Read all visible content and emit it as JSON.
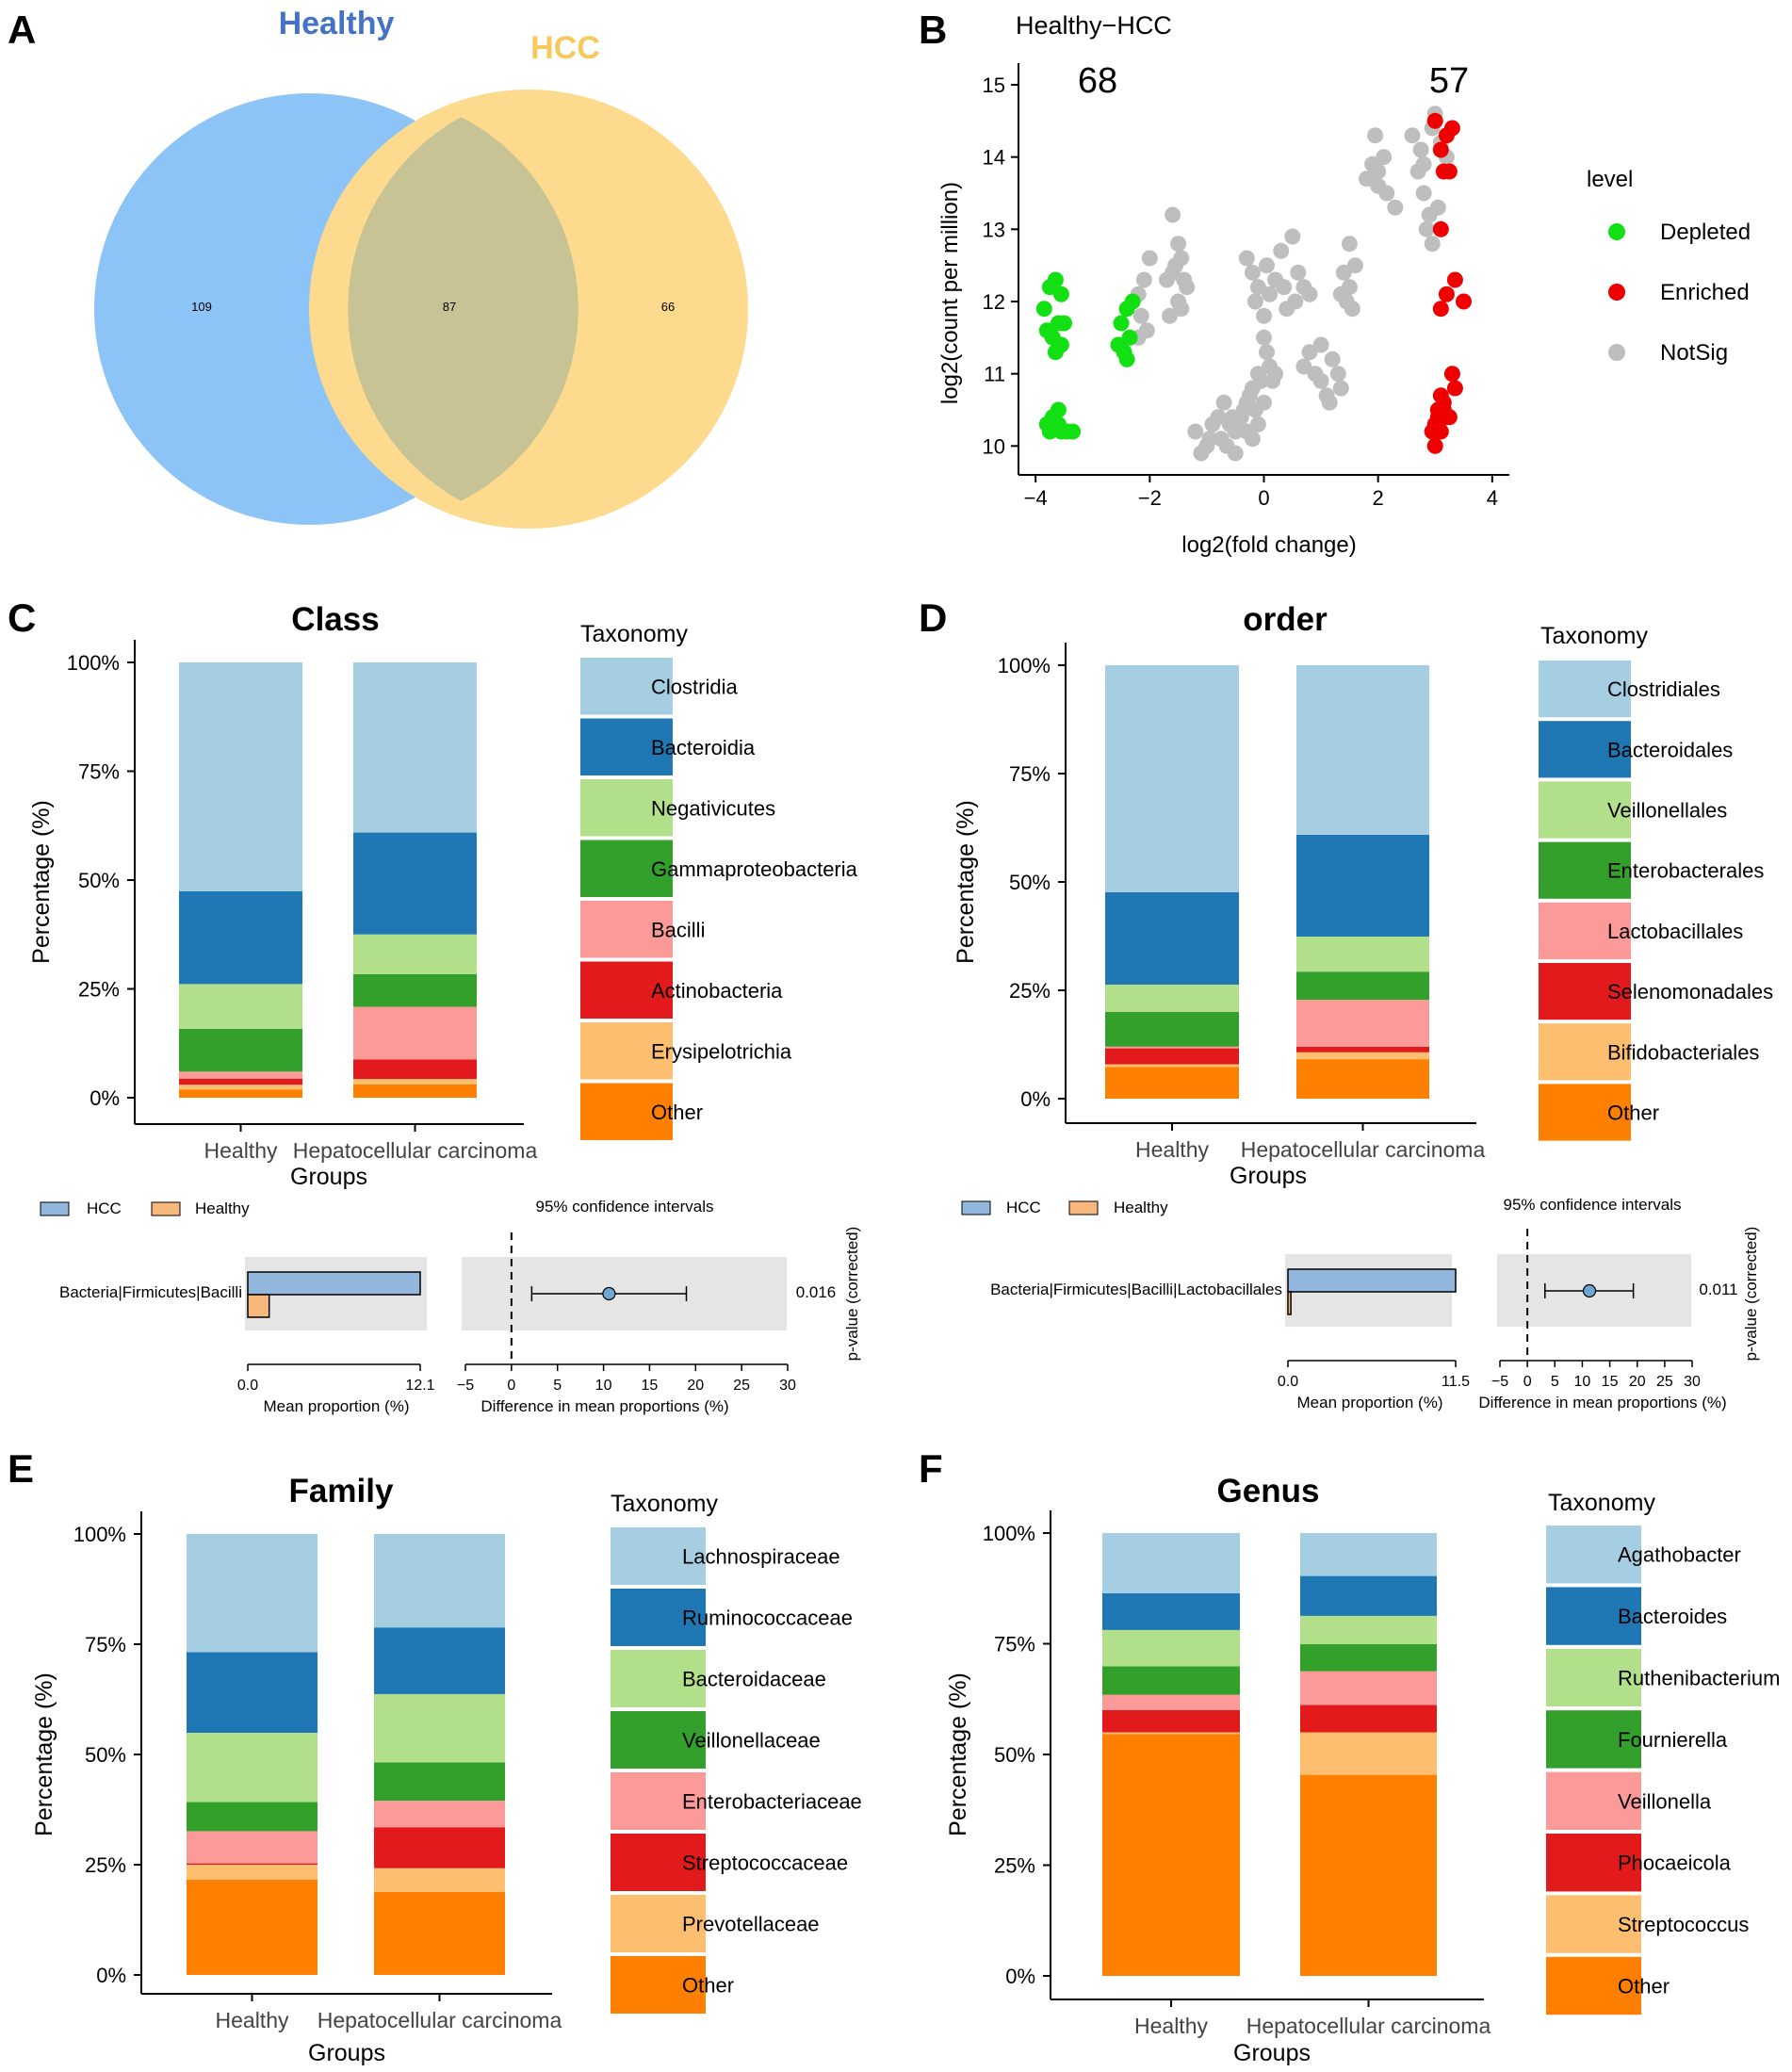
{
  "panel_letters": {
    "a": "A",
    "b": "B",
    "c": "C",
    "d": "D",
    "e": "E",
    "f": "F"
  },
  "colors": {
    "healthy_circle": "#8DC4F8",
    "hcc_circle": "#FDDA8E",
    "healthy_title": "#4472C4",
    "hcc_title": "#F5C95B",
    "depleted": "#12E012",
    "enriched": "#EE0000",
    "notsig": "#BEBEBE",
    "hcc_bar": "#91B8DC",
    "healthy_bar": "#F8B77D",
    "ci_panel": "#E5E5E5",
    "ci_point": "#6FA7D4",
    "taxa_palette": [
      "#A6CEE3",
      "#1F78B4",
      "#B2DF8A",
      "#33A02C",
      "#FB9A99",
      "#E31A1C",
      "#FDBF6F",
      "#FF7F00"
    ]
  },
  "chart_data": [
    {
      "id": "A",
      "type": "venn",
      "sets": [
        {
          "name": "Healthy",
          "only": 109
        },
        {
          "name": "HCC",
          "only": 66
        }
      ],
      "intersection": 87
    },
    {
      "id": "B",
      "type": "scatter",
      "title": "Healthy−HCC",
      "xlabel": "log2(fold change)",
      "ylabel": "log2(count per million)",
      "xlim": [
        -4.3,
        4.3
      ],
      "ylim": [
        9.6,
        15.3
      ],
      "xticks": [
        -4,
        -2,
        0,
        2,
        4
      ],
      "xtick_labels": [
        "−4",
        "−2",
        "0",
        "2",
        "4"
      ],
      "yticks": [
        10,
        11,
        12,
        13,
        14,
        15
      ],
      "counts": {
        "depleted": "68",
        "enriched": "57"
      },
      "legend_title": "level",
      "legend": [
        {
          "name": "Depleted",
          "key": "depleted"
        },
        {
          "name": "Enriched",
          "key": "enriched"
        },
        {
          "name": "NotSig",
          "key": "notsig"
        }
      ],
      "series": [
        {
          "name": "Depleted",
          "points": [
            [
              -3.85,
              11.9
            ],
            [
              -3.75,
              12.2
            ],
            [
              -3.65,
              12.3
            ],
            [
              -3.55,
              12.1
            ],
            [
              -3.8,
              11.6
            ],
            [
              -3.7,
              11.5
            ],
            [
              -3.6,
              11.7
            ],
            [
              -3.5,
              11.7
            ],
            [
              -3.65,
              11.3
            ],
            [
              -3.55,
              11.4
            ],
            [
              -3.75,
              10.2
            ],
            [
              -3.8,
              10.3
            ],
            [
              -3.7,
              10.4
            ],
            [
              -3.6,
              10.3
            ],
            [
              -3.55,
              10.2
            ],
            [
              -3.45,
              10.2
            ],
            [
              -3.35,
              10.2
            ],
            [
              -3.6,
              10.5
            ],
            [
              -2.5,
              11.7
            ],
            [
              -2.4,
              11.9
            ],
            [
              -2.3,
              12.0
            ],
            [
              -2.55,
              11.4
            ],
            [
              -2.45,
              11.3
            ],
            [
              -2.4,
              11.2
            ],
            [
              -2.35,
              11.5
            ]
          ]
        },
        {
          "name": "Enriched",
          "points": [
            [
              3.1,
              14.1
            ],
            [
              3.2,
              14.3
            ],
            [
              3.3,
              14.4
            ],
            [
              3.25,
              13.8
            ],
            [
              3.15,
              13.8
            ],
            [
              3.0,
              14.5
            ],
            [
              3.1,
              13.0
            ],
            [
              3.2,
              12.1
            ],
            [
              3.35,
              12.3
            ],
            [
              3.5,
              12.0
            ],
            [
              3.1,
              11.9
            ],
            [
              3.3,
              11.0
            ],
            [
              3.35,
              10.8
            ],
            [
              3.1,
              10.7
            ],
            [
              3.15,
              10.6
            ],
            [
              3.05,
              10.5
            ],
            [
              3.2,
              10.4
            ],
            [
              3.0,
              10.3
            ],
            [
              2.95,
              10.2
            ],
            [
              3.1,
              10.2
            ],
            [
              3.0,
              10.0
            ],
            [
              3.25,
              10.4
            ],
            [
              3.05,
              10.4
            ],
            [
              3.15,
              10.5
            ]
          ]
        },
        {
          "name": "NotSig",
          "points": [
            [
              -1.6,
              13.2
            ],
            [
              -1.5,
              12.8
            ],
            [
              -1.45,
              12.6
            ],
            [
              -1.55,
              12.5
            ],
            [
              -1.4,
              12.3
            ],
            [
              -1.6,
              12.4
            ],
            [
              -1.35,
              12.2
            ],
            [
              -1.7,
              12.3
            ],
            [
              -1.5,
              12.0
            ],
            [
              -1.65,
              11.8
            ],
            [
              -1.45,
              11.9
            ],
            [
              -2.0,
              12.6
            ],
            [
              -2.1,
              12.3
            ],
            [
              -2.2,
              12.1
            ],
            [
              -2.15,
              11.8
            ],
            [
              -2.05,
              11.6
            ],
            [
              -2.2,
              11.5
            ],
            [
              -0.3,
              12.6
            ],
            [
              -0.2,
              12.4
            ],
            [
              -0.1,
              12.2
            ],
            [
              -0.15,
              12.0
            ],
            [
              0.0,
              11.8
            ],
            [
              0.1,
              12.1
            ],
            [
              0.05,
              12.5
            ],
            [
              0.2,
              12.3
            ],
            [
              0.3,
              12.7
            ],
            [
              0.35,
              12.2
            ],
            [
              0.5,
              12.9
            ],
            [
              0.6,
              12.4
            ],
            [
              0.7,
              12.2
            ],
            [
              0.8,
              12.1
            ],
            [
              0.55,
              12.0
            ],
            [
              0.4,
              11.9
            ],
            [
              0.0,
              11.5
            ],
            [
              0.05,
              11.3
            ],
            [
              0.1,
              11.1
            ],
            [
              -0.1,
              11.0
            ],
            [
              -0.05,
              10.9
            ],
            [
              -0.2,
              10.8
            ],
            [
              -0.25,
              10.7
            ],
            [
              -0.3,
              10.6
            ],
            [
              -0.35,
              10.5
            ],
            [
              -0.4,
              10.4
            ],
            [
              -0.45,
              10.3
            ],
            [
              -0.5,
              10.2
            ],
            [
              -0.55,
              10.4
            ],
            [
              -0.6,
              10.3
            ],
            [
              -0.7,
              10.6
            ],
            [
              -0.8,
              10.4
            ],
            [
              -0.9,
              10.3
            ],
            [
              -1.0,
              10.0
            ],
            [
              -1.1,
              9.9
            ],
            [
              -0.95,
              10.1
            ],
            [
              -1.2,
              10.2
            ],
            [
              -0.75,
              10.1
            ],
            [
              -0.2,
              10.1
            ],
            [
              -0.1,
              10.3
            ],
            [
              0.0,
              10.6
            ],
            [
              -0.3,
              10.2
            ],
            [
              -0.5,
              9.9
            ],
            [
              -0.65,
              10.0
            ],
            [
              0.15,
              10.9
            ],
            [
              0.2,
              11.0
            ],
            [
              -0.15,
              10.5
            ],
            [
              0.7,
              11.1
            ],
            [
              0.8,
              11.3
            ],
            [
              0.9,
              11.0
            ],
            [
              1.0,
              10.9
            ],
            [
              1.1,
              10.7
            ],
            [
              1.2,
              11.2
            ],
            [
              1.3,
              11.0
            ],
            [
              1.35,
              10.8
            ],
            [
              1.15,
              10.6
            ],
            [
              1.0,
              11.4
            ],
            [
              1.4,
              12.4
            ],
            [
              1.5,
              12.2
            ],
            [
              1.6,
              12.5
            ],
            [
              1.45,
              12.0
            ],
            [
              1.55,
              11.9
            ],
            [
              1.5,
              12.8
            ],
            [
              1.35,
              12.1
            ],
            [
              1.8,
              13.7
            ],
            [
              1.9,
              13.9
            ],
            [
              2.0,
              13.6
            ],
            [
              2.1,
              14.0
            ],
            [
              1.95,
              14.3
            ],
            [
              2.0,
              13.8
            ],
            [
              2.15,
              13.5
            ],
            [
              2.3,
              13.3
            ],
            [
              2.6,
              14.3
            ],
            [
              2.75,
              14.1
            ],
            [
              2.7,
              13.8
            ],
            [
              2.8,
              13.5
            ],
            [
              2.9,
              13.2
            ],
            [
              2.85,
              13.0
            ],
            [
              2.95,
              12.8
            ],
            [
              3.05,
              13.3
            ],
            [
              2.8,
              13.9
            ],
            [
              3.2,
              14.0
            ],
            [
              2.95,
              14.4
            ],
            [
              3.0,
              14.6
            ],
            [
              3.1,
              14.2
            ]
          ]
        }
      ]
    },
    {
      "id": "C",
      "type": "bar",
      "stacked": true,
      "title": "Class",
      "xlabel": "Groups",
      "ylabel": "Percentage (%)",
      "categories": [
        "Healthy",
        "Hepatocellular carcinoma"
      ],
      "yticks": [
        "0%",
        "25%",
        "50%",
        "75%",
        "100%"
      ],
      "legend_title": "Taxonomy",
      "series": [
        {
          "name": "Clostridia",
          "values": [
            52.6,
            39.1
          ]
        },
        {
          "name": "Bacteroidia",
          "values": [
            21.3,
            23.4
          ]
        },
        {
          "name": "Negativicutes",
          "values": [
            10.3,
            9.1
          ]
        },
        {
          "name": "Gammaproteobacteria",
          "values": [
            9.8,
            7.5
          ]
        },
        {
          "name": "Bacilli",
          "values": [
            1.6,
            12.1
          ]
        },
        {
          "name": "Actinobacteria",
          "values": [
            1.4,
            4.5
          ]
        },
        {
          "name": "Erysipelotrichia",
          "values": [
            1.1,
            1.2
          ]
        },
        {
          "name": "Other",
          "values": [
            1.9,
            3.1
          ]
        }
      ]
    },
    {
      "id": "D",
      "type": "bar",
      "stacked": true,
      "title": "order",
      "xlabel": "Groups",
      "ylabel": "Percentage (%)",
      "categories": [
        "Healthy",
        "Hepatocellular carcinoma"
      ],
      "yticks": [
        "0%",
        "25%",
        "50%",
        "75%",
        "100%"
      ],
      "legend_title": "Taxonomy",
      "series": [
        {
          "name": "Clostridiales",
          "values": [
            52.4,
            39.1
          ]
        },
        {
          "name": "Bacteroidales",
          "values": [
            21.3,
            23.5
          ]
        },
        {
          "name": "Veillonellales",
          "values": [
            6.3,
            8.1
          ]
        },
        {
          "name": "Enterobacterales",
          "values": [
            8.0,
            6.5
          ]
        },
        {
          "name": "Lactobacillales",
          "values": [
            0.4,
            10.8
          ]
        },
        {
          "name": "Selenomonadales",
          "values": [
            3.7,
            1.3
          ]
        },
        {
          "name": "Bifidobacteriales",
          "values": [
            0.6,
            1.6
          ]
        },
        {
          "name": "Other",
          "values": [
            7.3,
            9.1
          ]
        }
      ]
    },
    {
      "id": "E",
      "type": "bar",
      "stacked": true,
      "title": "Family",
      "xlabel": "Groups",
      "ylabel": "Percentage (%)",
      "categories": [
        "Healthy",
        "Hepatocellular carcinoma"
      ],
      "yticks": [
        "0%",
        "25%",
        "50%",
        "75%",
        "100%"
      ],
      "legend_title": "Taxonomy",
      "series": [
        {
          "name": "Lachnospiraceae",
          "values": [
            26.8,
            21.2
          ]
        },
        {
          "name": "Ruminococcaceae",
          "values": [
            18.3,
            15.1
          ]
        },
        {
          "name": "Bacteroidaceae",
          "values": [
            15.7,
            15.5
          ]
        },
        {
          "name": "Veillonellaceae",
          "values": [
            6.6,
            8.7
          ]
        },
        {
          "name": "Enterobacteriaceae",
          "values": [
            7.3,
            6.0
          ]
        },
        {
          "name": "Streptococcaceae",
          "values": [
            0.3,
            9.3
          ]
        },
        {
          "name": "Prevotellaceae",
          "values": [
            3.4,
            5.4
          ]
        },
        {
          "name": "Other",
          "values": [
            21.6,
            18.8
          ]
        }
      ]
    },
    {
      "id": "F",
      "type": "bar",
      "stacked": true,
      "title": "Genus",
      "xlabel": "Groups",
      "ylabel": "Percentage (%)",
      "categories": [
        "Healthy",
        "Hepatocellular carcinoma"
      ],
      "yticks": [
        "0%",
        "25%",
        "50%",
        "75%",
        "100%"
      ],
      "legend_title": "Taxonomy",
      "series": [
        {
          "name": "Agathobacter",
          "values": [
            13.6,
            9.7
          ]
        },
        {
          "name": "Bacteroides",
          "values": [
            8.3,
            9.0
          ]
        },
        {
          "name": "Ruthenibacterium",
          "values": [
            8.2,
            6.4
          ]
        },
        {
          "name": "Fournierella",
          "values": [
            6.4,
            6.1
          ]
        },
        {
          "name": "Veillonella",
          "values": [
            3.5,
            7.6
          ]
        },
        {
          "name": "Phocaeicola",
          "values": [
            5.0,
            6.2
          ]
        },
        {
          "name": "Streptococcus",
          "values": [
            0.4,
            9.6
          ]
        },
        {
          "name": "Other",
          "values": [
            54.6,
            45.4
          ]
        }
      ]
    },
    {
      "id": "C2",
      "type": "extended_error_bar",
      "legend": [
        "HCC",
        "Healthy"
      ],
      "feature": "Bacteria|Firmicutes|Bacilli",
      "mean_hcc": 12.1,
      "mean_healthy": 1.5,
      "mean_ticks": [
        "0.0",
        "12.1"
      ],
      "diff": 10.6,
      "ci": [
        2.2,
        19.0
      ],
      "diff_xlim": [
        -5,
        30
      ],
      "diff_ticks": [
        -5,
        0,
        5,
        10,
        15,
        20,
        25,
        30
      ],
      "diff_tick_labels": [
        "−5",
        "0",
        "5",
        "10",
        "15",
        "20",
        "25",
        "30"
      ],
      "ci_title": "95% confidence intervals",
      "mean_label": "Mean proportion (%)",
      "diff_label": "Difference in mean proportions (%)",
      "pvalue": "0.016",
      "pvalue_label": "p-value (corrected)"
    },
    {
      "id": "D2",
      "type": "extended_error_bar",
      "legend": [
        "HCC",
        "Healthy"
      ],
      "feature": "Bacteria|Firmicutes|Bacilli|Lactobacillales",
      "mean_hcc": 11.5,
      "mean_healthy": 0.2,
      "mean_ticks": [
        "0.0",
        "11.5"
      ],
      "diff": 11.3,
      "ci": [
        3.2,
        19.3
      ],
      "diff_xlim": [
        -5,
        30
      ],
      "diff_ticks": [
        -5,
        0,
        5,
        10,
        15,
        20,
        25,
        30
      ],
      "diff_tick_labels": [
        "−5",
        "0",
        "5",
        "10",
        "15",
        "20",
        "25",
        "30"
      ],
      "ci_title": "95% confidence intervals",
      "mean_label": "Mean proportion (%)",
      "diff_label": "Difference in mean proportions (%)",
      "pvalue": "0.011",
      "pvalue_label": "p-value (corrected)"
    }
  ]
}
